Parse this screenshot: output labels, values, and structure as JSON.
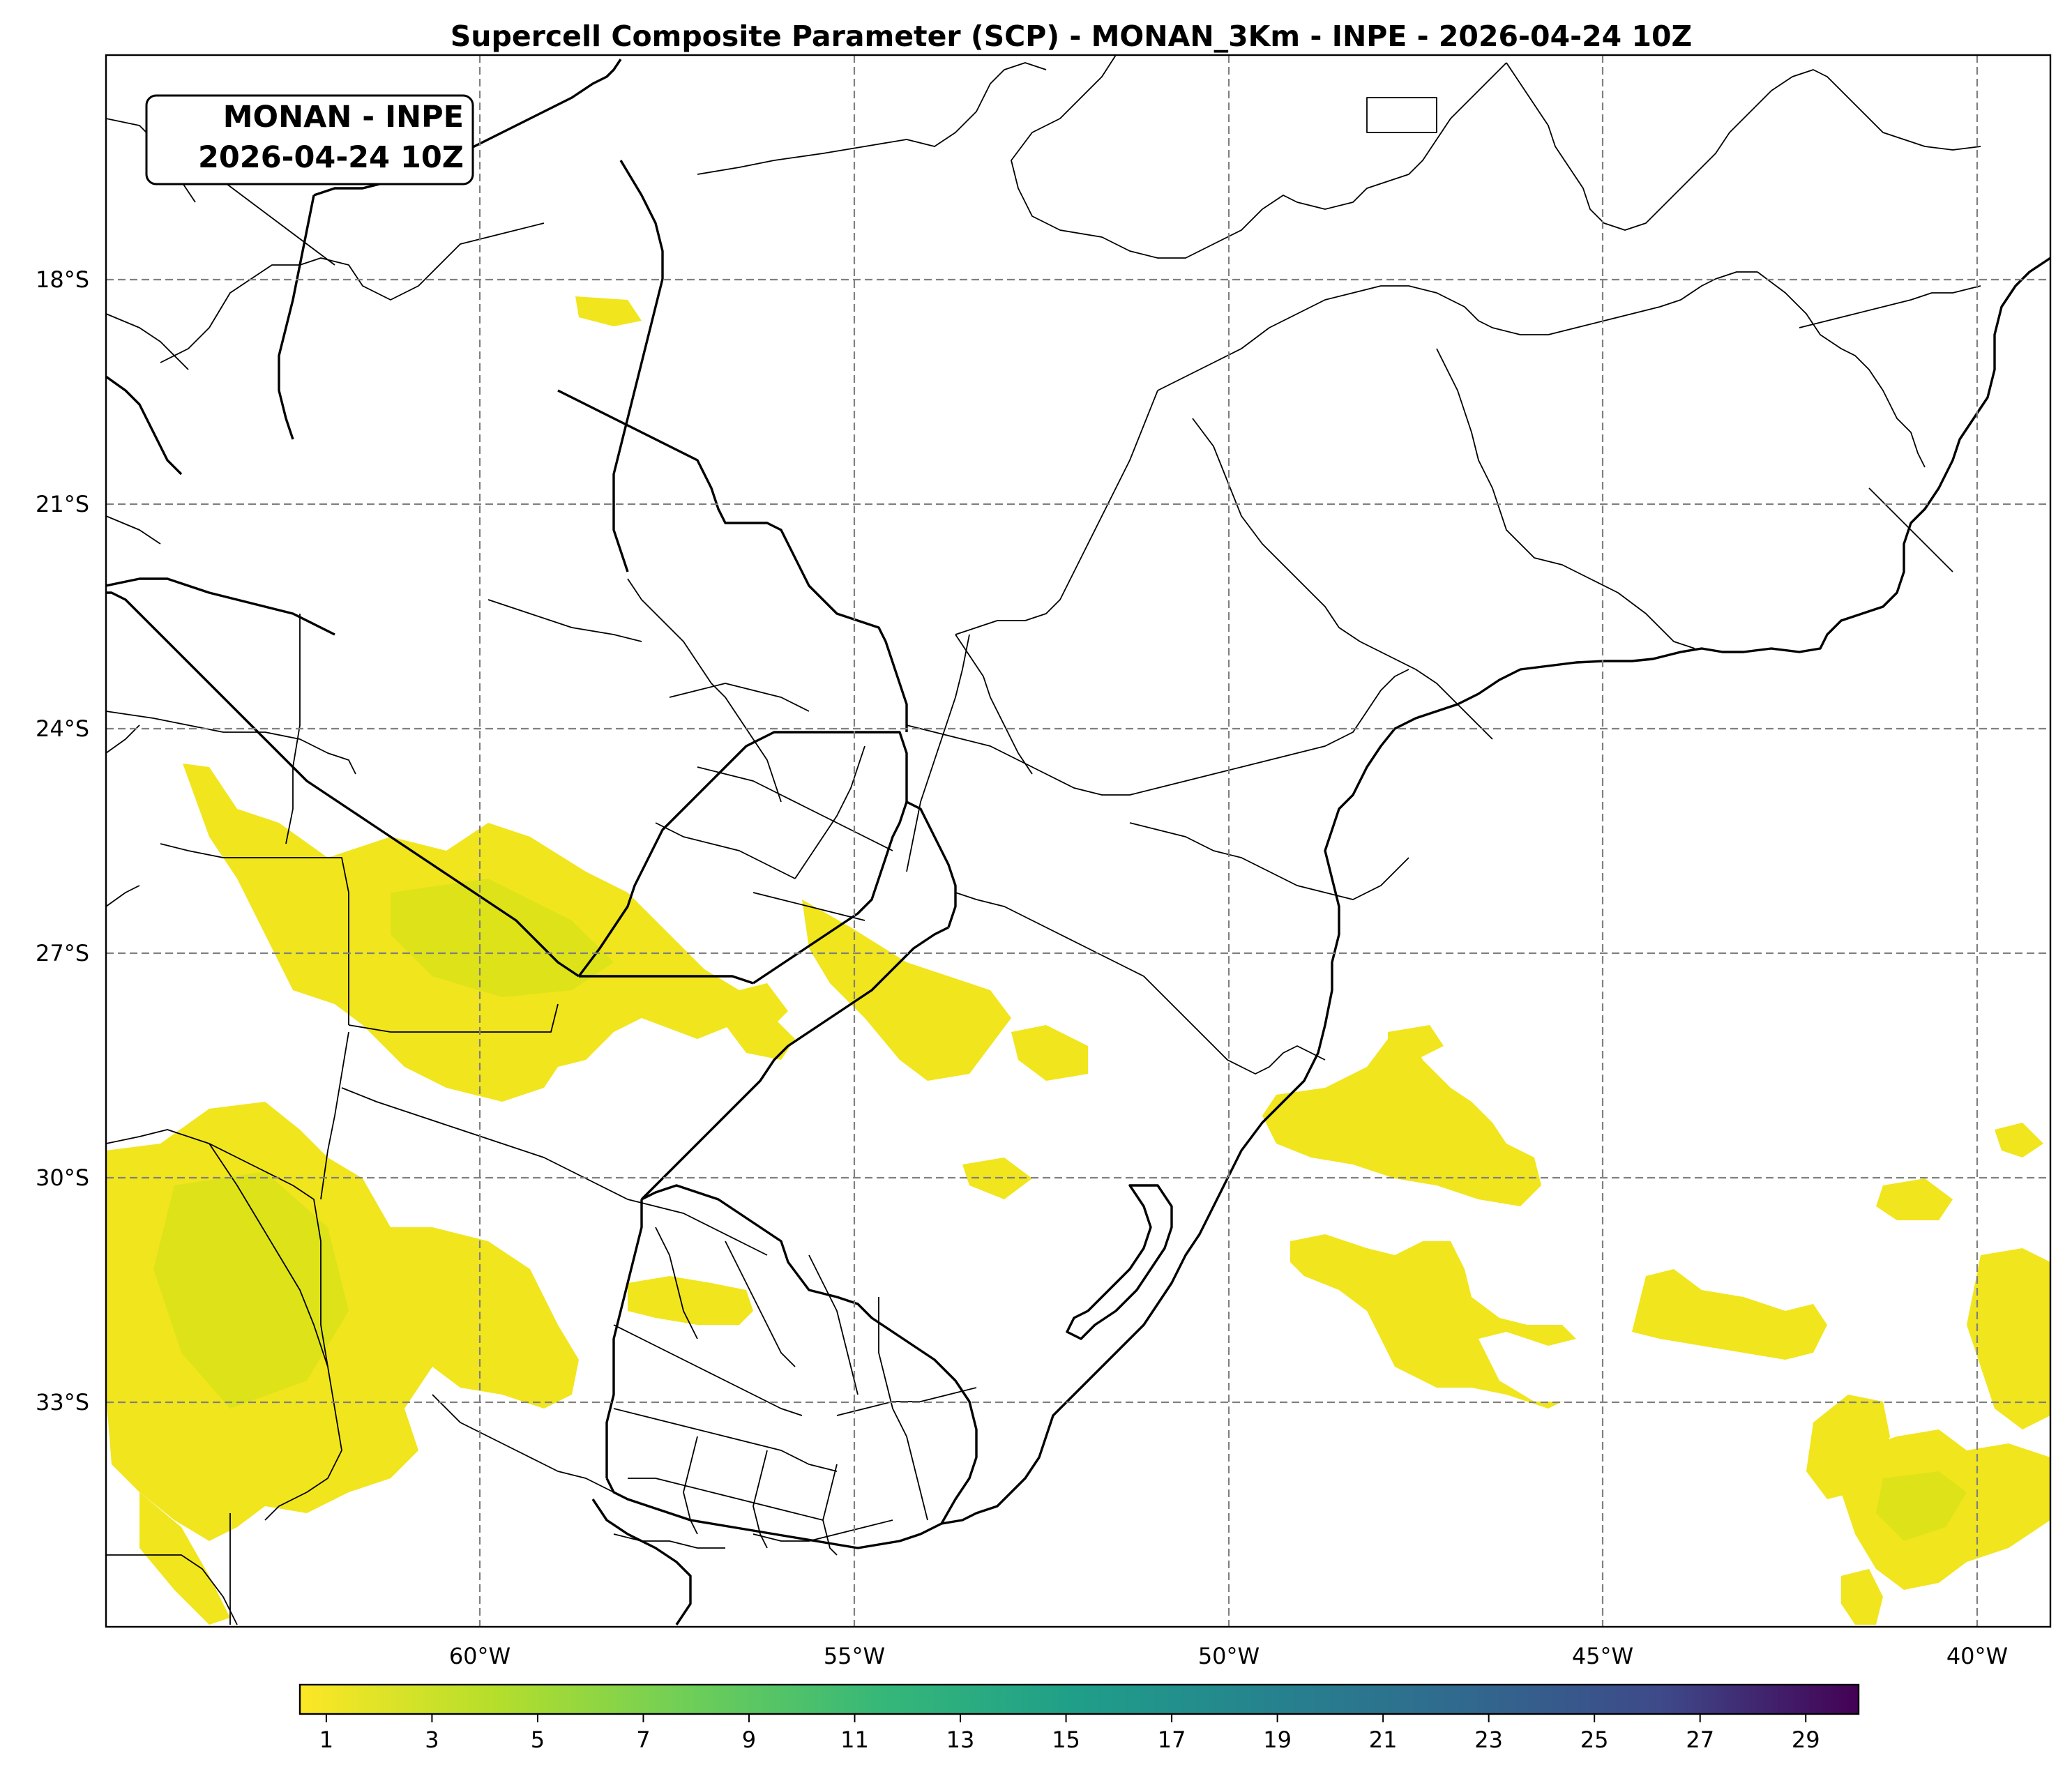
{
  "title": "Supercell Composite Parameter (SCP) - MONAN_3Km - INPE - 2026-04-24 10Z",
  "stamp": {
    "line1": "MONAN - INPE",
    "line2": "2026-04-24 10Z"
  },
  "map": {
    "lon_range": [
      -65,
      -39
    ],
    "lat_range": [
      -36,
      -15
    ],
    "lon_ticks": [
      "60°W",
      "55°W",
      "50°W",
      "45°W",
      "40°W"
    ],
    "lat_ticks": [
      "18°S",
      "21°S",
      "24°S",
      "27°S",
      "30°S",
      "33°S"
    ],
    "gridlines": true
  },
  "colorbar": {
    "colormap": "viridis",
    "min": 0.5,
    "max": 30,
    "ticks": [
      "1",
      "3",
      "5",
      "7",
      "9",
      "11",
      "13",
      "15",
      "17",
      "19",
      "21",
      "23",
      "25",
      "27",
      "29"
    ]
  },
  "colors": {
    "scp_low": "#f1e51d",
    "scp_low_2": "#dde318"
  }
}
